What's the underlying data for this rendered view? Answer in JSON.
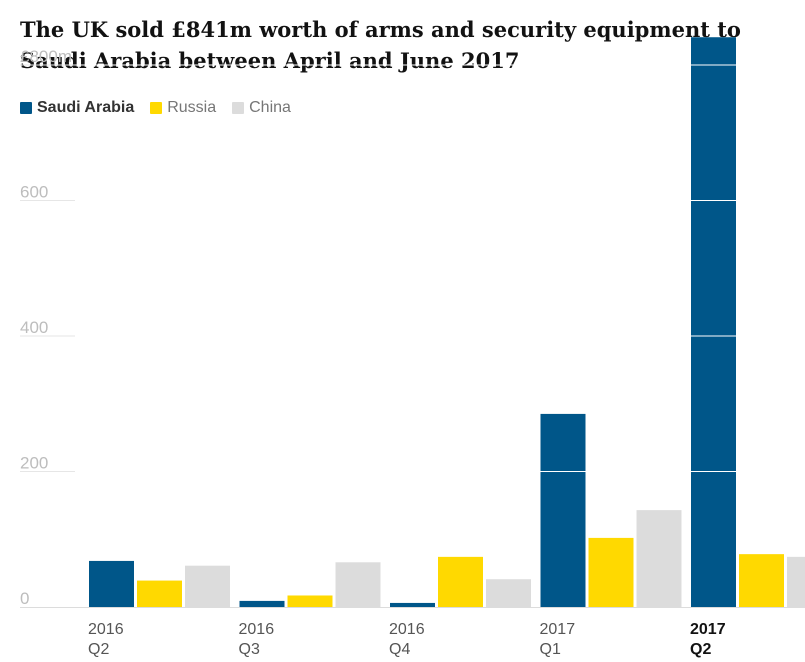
{
  "chart_data": {
    "type": "bar",
    "title": "The UK sold £841m worth of arms and security equipment to Saudi Arabia between April and June 2017",
    "categories": [
      {
        "year": "2016",
        "quarter": "Q2",
        "highlight": false
      },
      {
        "year": "2016",
        "quarter": "Q3",
        "highlight": false
      },
      {
        "year": "2016",
        "quarter": "Q4",
        "highlight": false
      },
      {
        "year": "2017",
        "quarter": "Q1",
        "highlight": false
      },
      {
        "year": "2017",
        "quarter": "Q2",
        "highlight": true
      }
    ],
    "series": [
      {
        "name": "Saudi Arabia",
        "color": "#005689",
        "values": [
          68,
          9,
          6,
          285,
          841
        ]
      },
      {
        "name": "Russia",
        "color": "#ffd900",
        "values": [
          39,
          17,
          74,
          102,
          78
        ]
      },
      {
        "name": "China",
        "color": "#dcdcdc",
        "values": [
          61,
          66,
          41,
          143,
          74
        ]
      }
    ],
    "y_ticks": [
      {
        "value": 0,
        "label": "0"
      },
      {
        "value": 200,
        "label": "200"
      },
      {
        "value": 400,
        "label": "400"
      },
      {
        "value": 600,
        "label": "600"
      },
      {
        "value": 800,
        "label": "£800m"
      }
    ],
    "ylim": [
      0,
      841
    ],
    "grid": true,
    "legend_position": "top-left"
  }
}
